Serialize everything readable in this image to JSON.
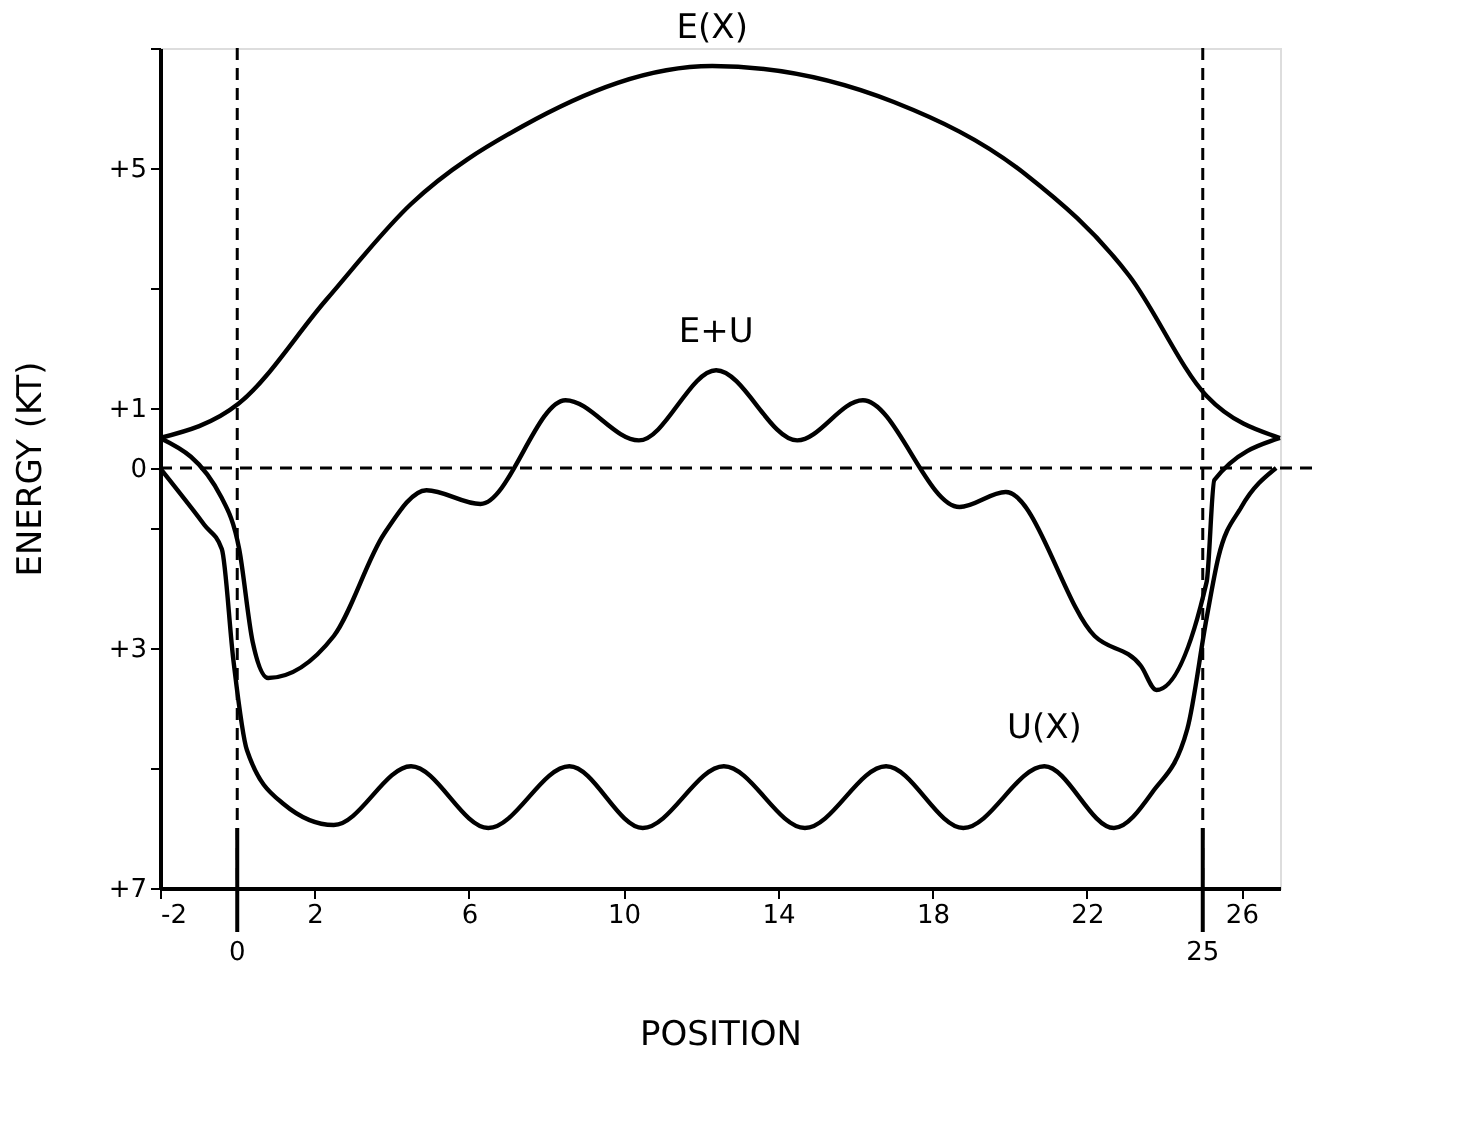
{
  "chart_data": {
    "type": "line",
    "xlabel": "POSITION",
    "ylabel": "ENERGY (KT)",
    "xlim": [
      -2,
      27
    ],
    "xticks": [
      -2,
      2,
      6,
      10,
      14,
      18,
      22,
      26
    ],
    "ylim": [
      -7,
      7
    ],
    "yticks": [
      {
        "value": -7,
        "label": "+7"
      },
      {
        "value": -5,
        "label": null
      },
      {
        "value": -3,
        "label": "+3"
      },
      {
        "value": -1,
        "label": null
      },
      0,
      {
        "value": 1,
        "label": "+1"
      },
      {
        "value": 3,
        "label": null
      },
      {
        "value": 5,
        "label": "+5"
      },
      {
        "value": 7,
        "label": null
      }
    ],
    "grid": false,
    "marker": "none",
    "line_style": "solid",
    "series": [
      {
        "name": "E(X)",
        "color": "#000000",
        "x": [
          -2,
          0.03,
          2.3,
          4.5,
          7.4,
          12.3,
          17.0,
          20.4,
          23.1,
          25.1,
          27
        ],
        "values": [
          0.5,
          1.07,
          2.8,
          4.4,
          5.7,
          6.7,
          6.1,
          4.9,
          3.2,
          1.2,
          0.5
        ]
      },
      {
        "name": "E+U",
        "color": "#000000",
        "x": [
          -2,
          -0.4,
          0.05,
          0.4,
          0.8,
          2.5,
          3.8,
          4.9,
          6.3,
          8.5,
          10.4,
          12.4,
          14.5,
          16.2,
          18.7,
          19.9,
          22.2,
          23.4,
          23.8,
          25.1,
          25.3,
          27
        ],
        "values": [
          0.5,
          -0.5,
          -1.35,
          -2.9,
          -3.5,
          -2.8,
          -1.1,
          -0.37,
          -0.6,
          1.13,
          0.46,
          1.63,
          0.46,
          1.13,
          -0.65,
          -0.4,
          -2.8,
          -3.3,
          -3.7,
          -1.9,
          -0.2,
          0.5
        ]
      },
      {
        "name": "U(X)",
        "color": "#000000",
        "x": [
          -2,
          -0.85,
          -0.4,
          -0.1,
          0.25,
          1.2,
          2.5,
          4.5,
          6.5,
          8.6,
          10.5,
          12.6,
          14.7,
          16.8,
          18.8,
          20.9,
          22.7,
          23.7,
          24.6,
          25.1,
          25.4,
          26,
          26.9
        ],
        "values": [
          0,
          -0.95,
          -1.35,
          -3.2,
          -4.7,
          -5.6,
          -5.95,
          -4.97,
          -6.0,
          -4.97,
          -6.0,
          -4.97,
          -6.0,
          -4.97,
          -6.0,
          -4.97,
          -6.0,
          -5.4,
          -4.35,
          -2.5,
          -1.5,
          -0.65,
          0
        ]
      }
    ],
    "ref_lines": [
      {
        "axis": "y",
        "value": 0,
        "label": null,
        "line_style": "dashed"
      },
      {
        "axis": "x",
        "value": 0,
        "label": "0",
        "line_style": "dashed"
      },
      {
        "axis": "x",
        "value": 25,
        "label": "25",
        "line_style": "dashed"
      }
    ]
  }
}
